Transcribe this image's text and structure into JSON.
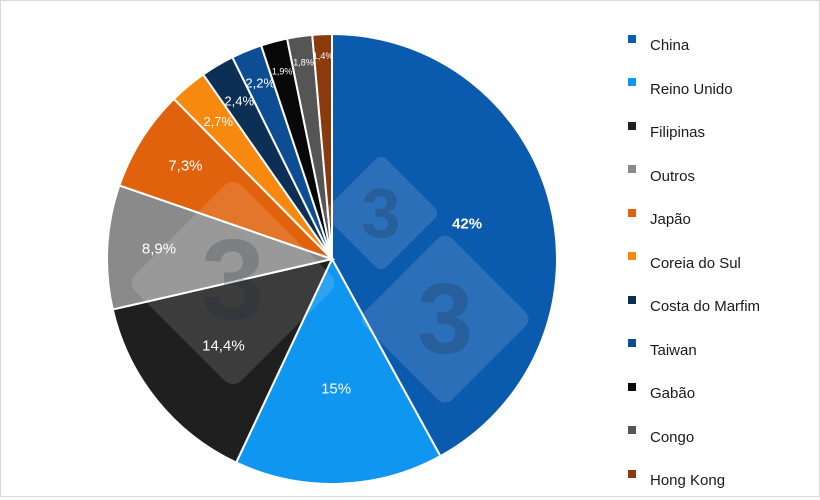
{
  "chart_data": {
    "type": "pie",
    "title": "",
    "legend_position": "right",
    "slices": [
      {
        "name": "China",
        "value": 42,
        "label": "42%",
        "color": "#0a5aad",
        "label_color": "#ffffff",
        "bold": true
      },
      {
        "name": "Reino Unido",
        "value": 15,
        "label": "15%",
        "color": "#0e96f0",
        "label_color": "#ffffff",
        "bold": false
      },
      {
        "name": "Filipinas",
        "value": 14.4,
        "label": "14,4%",
        "color": "#1f1f1f",
        "label_color": "#ffffff",
        "bold": false
      },
      {
        "name": "Outros",
        "value": 8.9,
        "label": "8,9%",
        "color": "#8a8a8a",
        "label_color": "#ffffff",
        "bold": false
      },
      {
        "name": "Japão",
        "value": 7.3,
        "label": "7,3%",
        "color": "#e0620c",
        "label_color": "#ffffff",
        "bold": false
      },
      {
        "name": "Coreia do Sul",
        "value": 2.7,
        "label": "2,7%",
        "color": "#f7890f",
        "label_color": "#ffffff",
        "bold": false
      },
      {
        "name": "Costa do Marfim",
        "value": 2.4,
        "label": "2,4%",
        "color": "#0b2f55",
        "label_color": "#ffffff",
        "bold": false
      },
      {
        "name": "Taiwan",
        "value": 2.2,
        "label": "2,2%",
        "color": "#0d4d94",
        "label_color": "#ffffff",
        "bold": false
      },
      {
        "name": "Gabão",
        "value": 1.9,
        "label": "1,9%",
        "color": "#080808",
        "label_color": "#ffffff",
        "bold": false
      },
      {
        "name": "Congo",
        "value": 1.8,
        "label": "1,8%",
        "color": "#555555",
        "label_color": "#ffffff",
        "bold": false
      },
      {
        "name": "Hong Kong",
        "value": 1.4,
        "label": "1,4%",
        "color": "#8a3a0c",
        "label_color": "#ffffff",
        "bold": false
      }
    ]
  }
}
